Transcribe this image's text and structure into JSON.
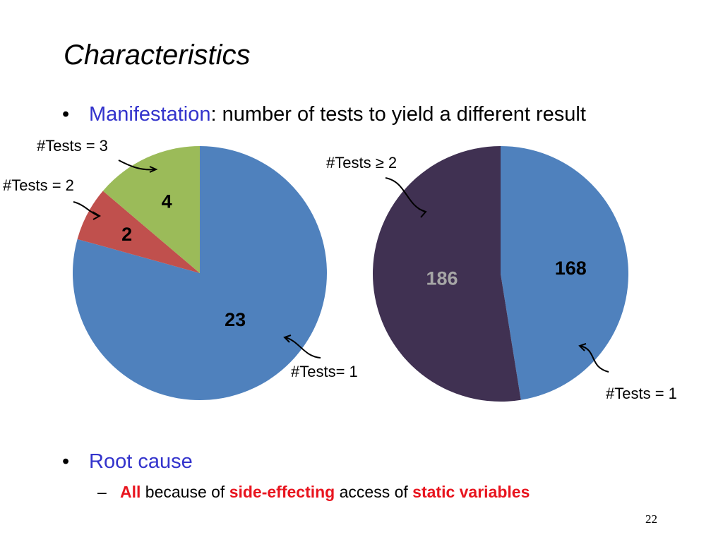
{
  "slide": {
    "title": "Characteristics",
    "page_number": "22",
    "bullets": [
      {
        "bullet": "•",
        "highlight": "Manifestation",
        "rest": ": number of tests to yield a different result"
      },
      {
        "bullet": "•",
        "highlight": "Root cause",
        "rest": ""
      }
    ],
    "sub_bullet": {
      "dash": "–",
      "parts": [
        {
          "text": "All",
          "emphasis": true
        },
        {
          "text": " because of ",
          "emphasis": false
        },
        {
          "text": "side-effecting",
          "emphasis": true
        },
        {
          "text": " access of ",
          "emphasis": false
        },
        {
          "text": "static variables",
          "emphasis": true
        }
      ]
    },
    "colors": {
      "accent": "#3333cc",
      "emphasis": "#e8141e"
    }
  },
  "chart_data": [
    {
      "type": "pie",
      "slices": [
        {
          "label": "#Tests= 1",
          "value": 23,
          "color": "#4f81bd",
          "value_color": "#000000"
        },
        {
          "label": "#Tests = 2",
          "value": 2,
          "color": "#c0504d",
          "value_color": "#000000"
        },
        {
          "label": "#Tests = 3",
          "value": 4,
          "color": "#9bbb59",
          "value_color": "#000000"
        }
      ]
    },
    {
      "type": "pie",
      "slices": [
        {
          "label": "#Tests = 1",
          "value": 168,
          "color": "#4f81bd",
          "value_color": "#000000"
        },
        {
          "label": "#Tests ≥ 2",
          "value": 186,
          "color": "#403152",
          "value_color": "#a6a6a6"
        }
      ]
    }
  ]
}
